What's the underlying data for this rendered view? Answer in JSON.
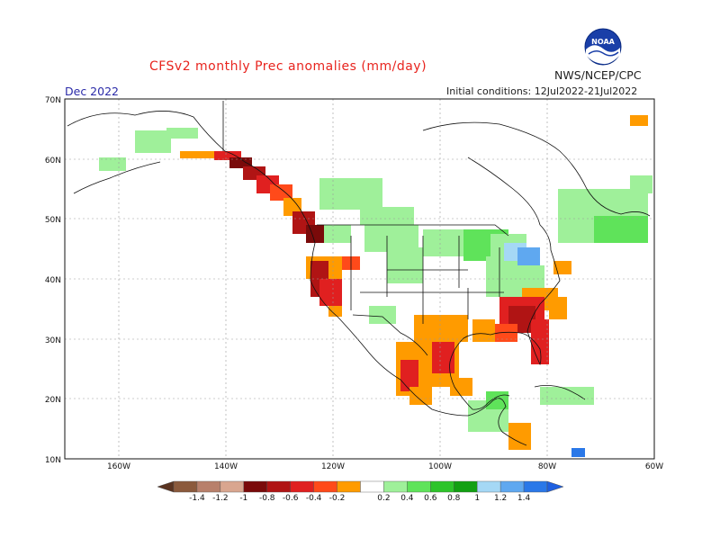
{
  "title": "CFSv2 monthly Prec anomalies (mm/day)",
  "organization": "NWS/NCEP/CPC",
  "month_label": "Dec 2022",
  "initial_conditions": "Initial conditions: 12Jul2022-21Jul2022",
  "logo": {
    "icon": "noaa-logo-icon",
    "text": "NOAA"
  },
  "map": {
    "lon_labels": [
      "160W",
      "140W",
      "120W",
      "100W",
      "80W",
      "60W"
    ],
    "lat_labels": [
      "70N",
      "60N",
      "50N",
      "40N",
      "30N",
      "20N",
      "10N"
    ]
  },
  "colorbar": {
    "labels": [
      "-1.4",
      "-1.2",
      "-1",
      "-0.8",
      "-0.6",
      "-0.4",
      "-0.2",
      "0.2",
      "0.4",
      "0.6",
      "0.8",
      "1",
      "1.2",
      "1.4"
    ],
    "colors": [
      "#8b5a3c",
      "#b8806b",
      "#d9a68f",
      "#7a0a0a",
      "#b01414",
      "#e02020",
      "#ff4a1a",
      "#ff9b00",
      "#ffffff",
      "#9ff09a",
      "#5fe35a",
      "#2dc42a",
      "#12a012",
      "#a5d8f5",
      "#5fa8f0",
      "#2a78e8"
    ],
    "below_color": "#5a3320",
    "above_color": "#1e5fe0"
  }
}
